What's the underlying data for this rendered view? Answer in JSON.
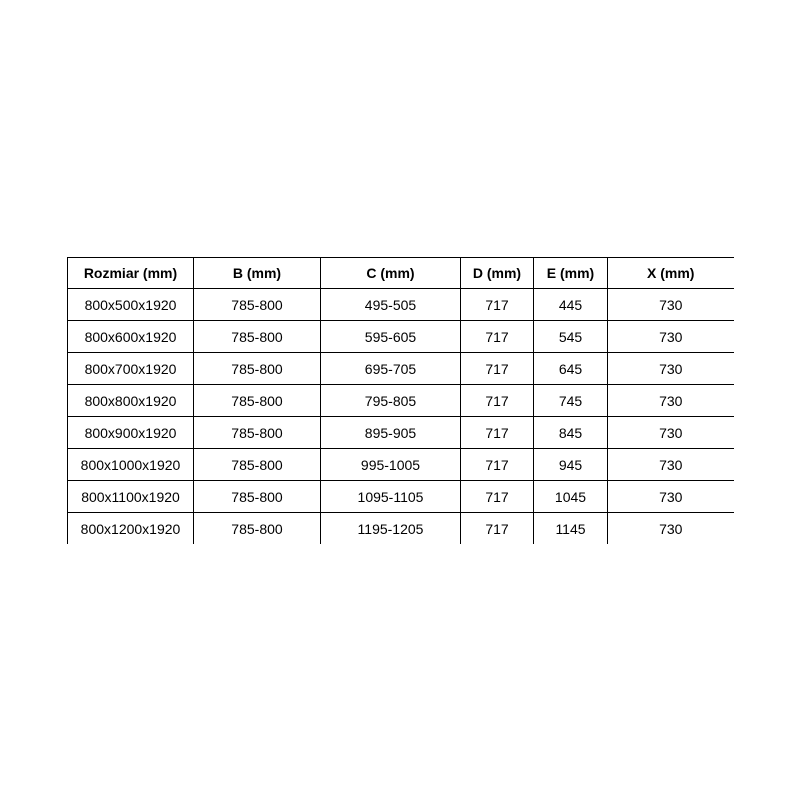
{
  "colors": {
    "background": "#ffffff",
    "border": "#000000",
    "text": "#000000"
  },
  "table": {
    "columns": [
      "Rozmiar (mm)",
      "B (mm)",
      "C (mm)",
      "D (mm)",
      "E (mm)",
      "X (mm)"
    ],
    "rows": [
      [
        "800x500x1920",
        "785-800",
        "495-505",
        "717",
        "445",
        "730"
      ],
      [
        "800x600x1920",
        "785-800",
        "595-605",
        "717",
        "545",
        "730"
      ],
      [
        "800x700x1920",
        "785-800",
        "695-705",
        "717",
        "645",
        "730"
      ],
      [
        "800x800x1920",
        "785-800",
        "795-805",
        "717",
        "745",
        "730"
      ],
      [
        "800x900x1920",
        "785-800",
        "895-905",
        "717",
        "845",
        "730"
      ],
      [
        "800x1000x1920",
        "785-800",
        "995-1005",
        "717",
        "945",
        "730"
      ],
      [
        "800x1100x1920",
        "785-800",
        "1095-1105",
        "717",
        "1045",
        "730"
      ],
      [
        "800x1200x1920",
        "785-800",
        "1195-1205",
        "717",
        "1145",
        "730"
      ]
    ]
  },
  "chart_data": {
    "type": "table",
    "title": "",
    "columns": [
      "Rozmiar (mm)",
      "B (mm)",
      "C (mm)",
      "D (mm)",
      "E (mm)",
      "X (mm)"
    ],
    "rows": [
      [
        "800x500x1920",
        "785-800",
        "495-505",
        "717",
        "445",
        "730"
      ],
      [
        "800x600x1920",
        "785-800",
        "595-605",
        "717",
        "545",
        "730"
      ],
      [
        "800x700x1920",
        "785-800",
        "695-705",
        "717",
        "645",
        "730"
      ],
      [
        "800x800x1920",
        "785-800",
        "795-805",
        "717",
        "745",
        "730"
      ],
      [
        "800x900x1920",
        "785-800",
        "895-905",
        "717",
        "845",
        "730"
      ],
      [
        "800x1000x1920",
        "785-800",
        "995-1005",
        "717",
        "945",
        "730"
      ],
      [
        "800x1100x1920",
        "785-800",
        "1095-1105",
        "717",
        "1045",
        "730"
      ],
      [
        "800x1200x1920",
        "785-800",
        "1195-1205",
        "717",
        "1145",
        "730"
      ]
    ]
  }
}
